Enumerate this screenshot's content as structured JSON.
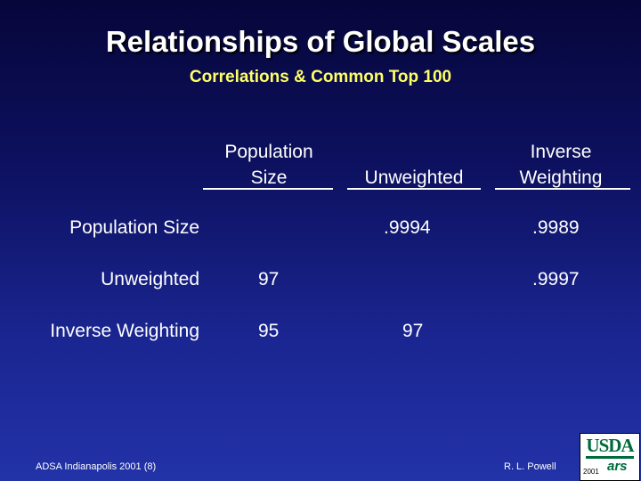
{
  "slide": {
    "title": "Relationships of Global Scales",
    "subtitle": "Correlations & Common Top 100"
  },
  "table": {
    "columns": [
      {
        "line1": "Population",
        "line2": "Size"
      },
      {
        "line1": "",
        "line2": "Unweighted"
      },
      {
        "line1": "Inverse",
        "line2": "Weighting"
      }
    ],
    "rows": [
      {
        "label": "Population Size",
        "cells": [
          "",
          ".9994",
          ".9989"
        ]
      },
      {
        "label": "Unweighted",
        "cells": [
          "97",
          "",
          ".9997"
        ]
      },
      {
        "label": "Inverse Weighting",
        "cells": [
          "95",
          "97",
          ""
        ]
      }
    ]
  },
  "footer": {
    "left": "ADSA Indianapolis 2001 (8)",
    "right": "R. L. Powell",
    "logo_text": "USDA",
    "logo_sub": "ars",
    "logo_year": "2001"
  },
  "colors": {
    "title": "#ffffff",
    "subtitle": "#ffff66",
    "background_top": "#06063a",
    "background_bottom": "#2233a8",
    "logo_green": "#006a3d"
  }
}
